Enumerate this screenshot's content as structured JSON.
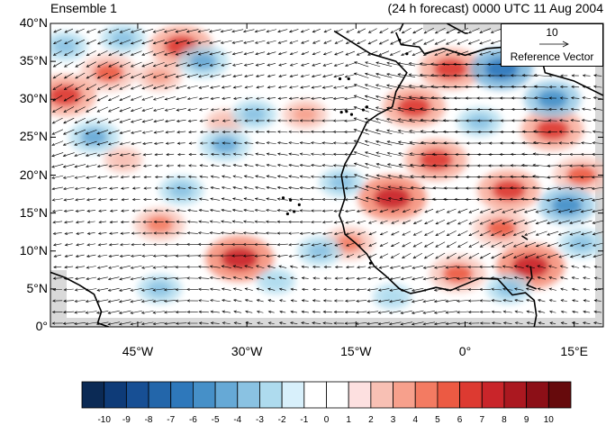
{
  "title_left": "Ensemble 1",
  "title_right": "(24 h forecast) 0000 UTC 11 Aug 2004",
  "reference_vector": {
    "magnitude": "10",
    "label": "Reference Vector"
  },
  "lat_ticks": [
    "40°N",
    "35°N",
    "30°N",
    "25°N",
    "20°N",
    "15°N",
    "10°N",
    "5°N",
    "0°"
  ],
  "lon_ticks": [
    "45°W",
    "30°W",
    "15°W",
    "0°",
    "15°E"
  ],
  "colorbar": {
    "labels": [
      "-10",
      "-9",
      "-8",
      "-7",
      "-6",
      "-5",
      "-4",
      "-3",
      "-2",
      "-1",
      "0",
      "1",
      "2",
      "3",
      "4",
      "5",
      "6",
      "7",
      "8",
      "9",
      "10"
    ],
    "colors": [
      "#0b2a55",
      "#0e3b78",
      "#174f94",
      "#2366aa",
      "#2e78bb",
      "#4690c8",
      "#66a9d6",
      "#8ac2e2",
      "#aedbee",
      "#d8f0fb",
      "#ffffff",
      "#ffffff",
      "#fde0e0",
      "#f8c0b4",
      "#f7a08c",
      "#f37b62",
      "#ec5a43",
      "#dd3a31",
      "#c9252a",
      "#ab1820",
      "#8c0f17",
      "#660a0c"
    ]
  },
  "map": {
    "region": {
      "lon_range": [
        -57,
        19
      ],
      "lat_range": [
        0,
        40
      ]
    },
    "colors": {
      "land_mask": "#d9d9d9",
      "coast": "#000000",
      "arrows": "#000000"
    },
    "anomaly_centers": [
      {
        "lon": -49,
        "lat": 33.5,
        "value": 5
      },
      {
        "lon": -55,
        "lat": 30.5,
        "value": 6
      },
      {
        "lon": -39,
        "lat": 37,
        "value": 6
      },
      {
        "lon": -42,
        "lat": 33,
        "value": 3
      },
      {
        "lon": -31,
        "lat": 9,
        "value": 7
      },
      {
        "lon": -42,
        "lat": 13.5,
        "value": 4
      },
      {
        "lon": -10,
        "lat": 17,
        "value": 7
      },
      {
        "lon": -4,
        "lat": 22,
        "value": 6
      },
      {
        "lon": -7,
        "lat": 29,
        "value": 6
      },
      {
        "lon": -2,
        "lat": 34,
        "value": 6
      },
      {
        "lon": 6,
        "lat": 18,
        "value": 6
      },
      {
        "lon": 12,
        "lat": 26,
        "value": 6
      },
      {
        "lon": 16,
        "lat": 20,
        "value": 5
      },
      {
        "lon": 5,
        "lat": 13,
        "value": 5
      },
      {
        "lon": 9,
        "lat": 8,
        "value": 7
      },
      {
        "lon": -1,
        "lat": 7,
        "value": 5
      },
      {
        "lon": -16,
        "lat": 11,
        "value": 4
      },
      {
        "lon": -22,
        "lat": 28,
        "value": 3
      },
      {
        "lon": -33,
        "lat": 27,
        "value": 2
      },
      {
        "lon": -47,
        "lat": 22,
        "value": 2
      },
      {
        "lon": -36,
        "lat": 35,
        "value": -4
      },
      {
        "lon": -47,
        "lat": 38,
        "value": -3
      },
      {
        "lon": -55,
        "lat": 37,
        "value": -3
      },
      {
        "lon": -51,
        "lat": 25,
        "value": -4
      },
      {
        "lon": -39,
        "lat": 18,
        "value": -3
      },
      {
        "lon": -33,
        "lat": 24,
        "value": -4
      },
      {
        "lon": -29,
        "lat": 28,
        "value": -3
      },
      {
        "lon": -17,
        "lat": 19,
        "value": -3
      },
      {
        "lon": -20,
        "lat": 10,
        "value": -3
      },
      {
        "lon": -42,
        "lat": 5,
        "value": -3
      },
      {
        "lon": -26,
        "lat": 6,
        "value": -2
      },
      {
        "lon": 5,
        "lat": 34,
        "value": -6
      },
      {
        "lon": 12,
        "lat": 30,
        "value": -5
      },
      {
        "lon": 2,
        "lat": 27,
        "value": -3
      },
      {
        "lon": 14,
        "lat": 16,
        "value": -5
      },
      {
        "lon": 6,
        "lat": 5,
        "value": -3
      },
      {
        "lon": -10,
        "lat": 4,
        "value": -2
      },
      {
        "lon": 16,
        "lat": 11,
        "value": -3
      }
    ],
    "coastlines": [
      [
        [
          -57,
          7.2
        ],
        [
          -55,
          6.5
        ],
        [
          -53,
          5.5
        ],
        [
          -51,
          4.3
        ],
        [
          -50,
          2
        ],
        [
          -50.5,
          0.5
        ],
        [
          -49,
          0
        ]
      ],
      [
        [
          -18,
          39
        ],
        [
          -13,
          36
        ],
        [
          -9.5,
          35
        ],
        [
          -8,
          33.5
        ],
        [
          -9.5,
          31
        ],
        [
          -10,
          29
        ],
        [
          -12,
          28
        ],
        [
          -13.5,
          27
        ],
        [
          -15,
          24
        ],
        [
          -16.5,
          21.5
        ],
        [
          -17,
          20
        ],
        [
          -16.5,
          17
        ],
        [
          -17.3,
          14.7
        ],
        [
          -16.8,
          13.5
        ],
        [
          -16.5,
          12.2
        ],
        [
          -15,
          11
        ],
        [
          -13.5,
          9.6
        ],
        [
          -12.5,
          8
        ],
        [
          -11,
          6.8
        ],
        [
          -9,
          5
        ],
        [
          -7.5,
          4.4
        ],
        [
          -6,
          4.7
        ],
        [
          -4,
          5.2
        ],
        [
          -2,
          4.8
        ],
        [
          0,
          5.6
        ],
        [
          2,
          6.4
        ],
        [
          4.5,
          6.3
        ],
        [
          6.5,
          4.2
        ],
        [
          8.3,
          4.5
        ],
        [
          9.5,
          3.5
        ],
        [
          9.8,
          1.5
        ],
        [
          9.5,
          0
        ]
      ],
      [
        [
          -5.6,
          36
        ],
        [
          -3,
          36.7
        ],
        [
          0,
          35.8
        ],
        [
          3,
          36.7
        ],
        [
          7,
          37
        ],
        [
          10,
          37.2
        ],
        [
          10.5,
          35.5
        ],
        [
          11,
          33.5
        ],
        [
          15,
          32.4
        ],
        [
          19,
          30.5
        ]
      ],
      [
        [
          -9.5,
          38.8
        ],
        [
          -8.8,
          37.2
        ],
        [
          -6.3,
          36.9
        ],
        [
          -5.6,
          36
        ]
      ],
      [
        [
          -8.5,
          40
        ],
        [
          -9,
          39
        ]
      ],
      [
        [
          -2.5,
          40
        ],
        [
          0,
          38.7
        ],
        [
          0.4,
          38.7
        ]
      ],
      [
        [
          11.2,
          40
        ],
        [
          12.6,
          37.4
        ],
        [
          15.5,
          37
        ],
        [
          16,
          38
        ],
        [
          17,
          39
        ],
        [
          18.5,
          40
        ]
      ],
      [
        [
          18.5,
          40
        ],
        [
          17,
          40
        ]
      ],
      [
        [
          8.5,
          39
        ],
        [
          9.7,
          39.2
        ],
        [
          9.5,
          41
        ]
      ],
      [
        [
          9.8,
          5
        ],
        [
          8.5,
          5.5
        ],
        [
          9.2,
          6.5
        ],
        [
          9,
          8
        ]
      ],
      [
        [
          7.8,
          12
        ],
        [
          8.6,
          11.5
        ]
      ]
    ],
    "islands": [
      [
        -17,
        28.3
      ],
      [
        -15.6,
        28
      ],
      [
        -14,
        28.6
      ],
      [
        -13.5,
        29
      ],
      [
        -16.3,
        28.4
      ],
      [
        -24,
        16.7
      ],
      [
        -23.5,
        15.2
      ],
      [
        -22.8,
        16.1
      ],
      [
        -25,
        17
      ],
      [
        -24.4,
        14.9
      ],
      [
        -16,
        32.7
      ],
      [
        -17.2,
        32.7
      ],
      [
        -13,
        8.4
      ],
      [
        -9,
        37.8
      ],
      [
        -8,
        36
      ]
    ]
  }
}
